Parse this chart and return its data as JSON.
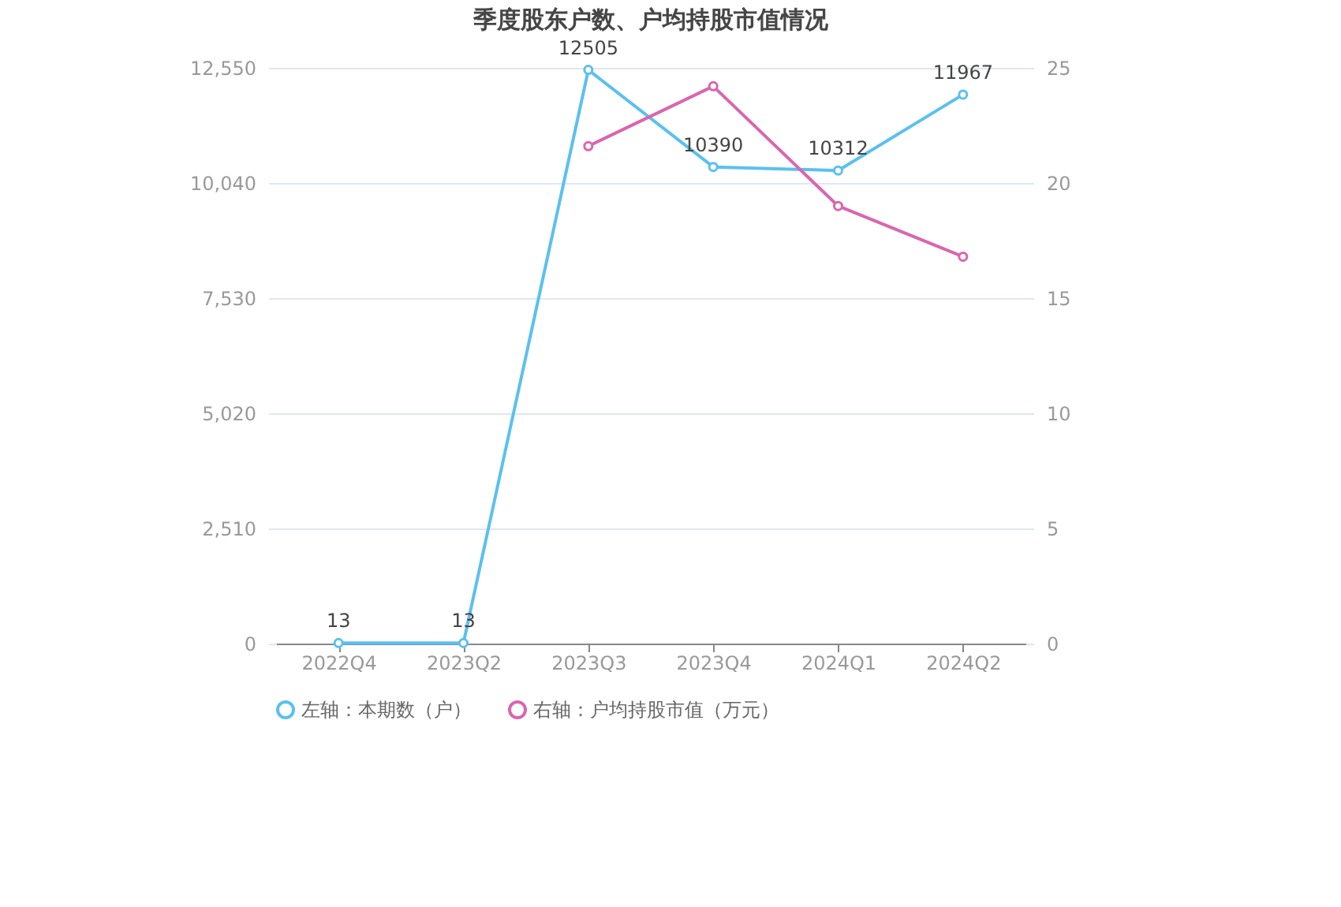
{
  "chart_data": {
    "type": "line",
    "title": "季度股东户数、户均持股市值情况",
    "categories": [
      "2022Q4",
      "2023Q2",
      "2023Q3",
      "2023Q4",
      "2024Q1",
      "2024Q2"
    ],
    "series": [
      {
        "name": "左轴：本期数（户）",
        "color": "#5bc0f0",
        "values": [
          13,
          13,
          12505,
          10390,
          10312,
          11967
        ],
        "value_labels": [
          "13",
          "13",
          "12505",
          "10390",
          "10312",
          "11967"
        ]
      },
      {
        "name": "右轴：户均持股市值（万元）",
        "color": "#d966ae",
        "axis": "y2",
        "values": [
          null,
          null,
          21.6,
          24.2,
          19.0,
          16.8
        ]
      }
    ],
    "ylim": [
      0,
      12550
    ],
    "yticks": [
      0,
      {
        "value": 2510,
        "label": "2,510"
      },
      {
        "value": 5020,
        "label": "5,020"
      },
      {
        "value": 7530,
        "label": "7,530"
      },
      {
        "value": 10040,
        "label": "10,040"
      },
      {
        "value": 12550,
        "label": "12,550"
      }
    ],
    "y2lim": [
      0,
      25
    ],
    "y2ticks": [
      0,
      5,
      10,
      15,
      20,
      25
    ],
    "grid": "y",
    "legend": "bottom",
    "marker": "circle",
    "line_style": "solid"
  }
}
